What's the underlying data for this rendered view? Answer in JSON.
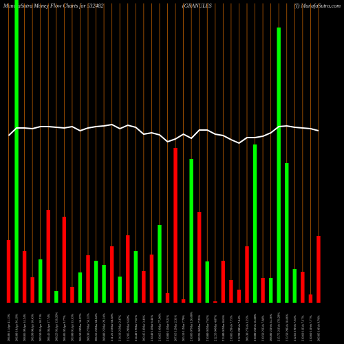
{
  "chart_data": {
    "type": "bar",
    "title": "MunafaSutra  Money Flow  Charts for 532482",
    "subtitle": "(GRANULES",
    "source": "(I) MunafaSutra.com",
    "categories": [
      "206.06 11Apr 41.13%",
      "206.80 10Apr 96.19%",
      "208.85 09Apr 14.24%",
      "206.90 08Apr 10.43%",
      "209.50 05Apr 10.21%",
      "206.45 04Apr 17.74%",
      "208.25 03Apr 128.20%",
      "206.05 02Apr 9.77%",
      "209.00 01Apr 33.63%",
      "206.50 28Mar 34.07%",
      "208.30 27Mar 53.35%",
      "206.55 26Mar 68.84%",
      "208.80 25Mar 29.24%",
      "211.25 22Mar 68.38%",
      "214.10 21Mar 2.47%",
      "212.85 20Mar 6.60%",
      "214.40 19Mar 7.61%",
      "209.45 18Mar 3.46%",
      "210.40 15Mar 6.44%",
      "210.65 14Mar 77.90%",
      "210.80 13Mar 9.21%",
      "207.65 12Mar 2.31%",
      "205.10 11Mar 7.70%",
      "210.05 07Mar 128.88%",
      "209.95 06Mar 7.23%",
      "210.80 05Mar 7.62%",
      "212.55 04Mar 4.07%",
      "213.00 01Mar 8.65%",
      "210.85 29Feb 7.75%",
      "212.90 28Feb 7.44%",
      "206.30 27Feb 3.25%",
      "210.00 26Feb 16.88%",
      "210.50 23Feb 7.88%",
      "208.00 22Feb 24.26%",
      "215.75 21Feb 178.29%",
      "213.50 20Feb 18.86%",
      "212.65 19Feb 7.36%",
      "210.60 16Feb 7.17%",
      "210.60 15Feb 7.77%",
      "209.05 14Feb 9.70%"
    ],
    "series": [
      {
        "type": "bar",
        "values": [
          91,
          440,
          75,
          37,
          63,
          135,
          17,
          125,
          23,
          44,
          69,
          61,
          55,
          82,
          38,
          98,
          75,
          46,
          70,
          113,
          14,
          225,
          5,
          209,
          132,
          60,
          2,
          61,
          33,
          19,
          82,
          230,
          36,
          36,
          400,
          203,
          49,
          45,
          12,
          97
        ],
        "colors": [
          "#ff0000",
          "#00ff00",
          "#ff0000",
          "#ff0000",
          "#00ff00",
          "#ff0000",
          "#00ff00",
          "#ff0000",
          "#ff0000",
          "#00ff00",
          "#ff0000",
          "#00ff00",
          "#00ff00",
          "#ff0000",
          "#00ff00",
          "#ff0000",
          "#00ff00",
          "#ff0000",
          "#ff0000",
          "#00ff00",
          "#ff0000",
          "#ff0000",
          "#ff0000",
          "#00ff00",
          "#ff0000",
          "#00ff00",
          "#ff0000",
          "#ff0000",
          "#ff0000",
          "#ff0000",
          "#ff0000",
          "#00ff00",
          "#ff0000",
          "#00ff00",
          "#00ff00",
          "#00ff00",
          "#00ff00",
          "#ff0000",
          "#ff0000",
          "#ff0000"
        ]
      },
      {
        "type": "line",
        "color": "#ffffff",
        "values": [
          243,
          254,
          254,
          253,
          256,
          256,
          255,
          254,
          256,
          250,
          254,
          256,
          257,
          259,
          253,
          258,
          255,
          245,
          247,
          244,
          234,
          238,
          245,
          239,
          251,
          251,
          245,
          243,
          237,
          232,
          240,
          240,
          242,
          247,
          256,
          257,
          255,
          254,
          253,
          250
        ]
      }
    ],
    "ylim": [
      0,
      440
    ],
    "grid_color": "#b35900"
  }
}
